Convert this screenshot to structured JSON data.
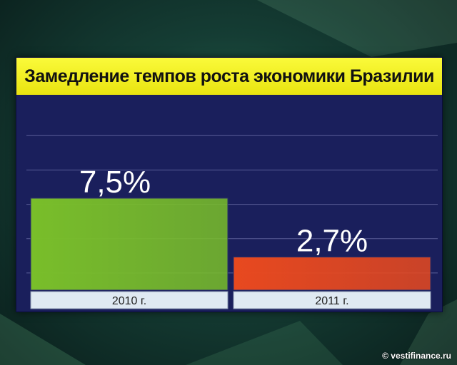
{
  "title": "Замедление темпов роста экономики Бразилии",
  "credit": "© vestifinance.ru",
  "colors": {
    "title_bg": "#f2ee1f",
    "plot_bg": "#1a1f5c",
    "bar_2010": "#79be2a",
    "bar_2011": "#e8491f",
    "gridline": "#5a5f98"
  },
  "chart_data": {
    "type": "bar",
    "title": "Замедление темпов роста экономики Бразилии",
    "categories": [
      "2010 г.",
      "2011 г."
    ],
    "values": [
      7.5,
      2.7
    ],
    "value_labels": [
      "7,5%",
      "2,7%"
    ],
    "ylim": [
      0,
      10
    ],
    "grid": true,
    "xlabel": "",
    "ylabel": ""
  }
}
